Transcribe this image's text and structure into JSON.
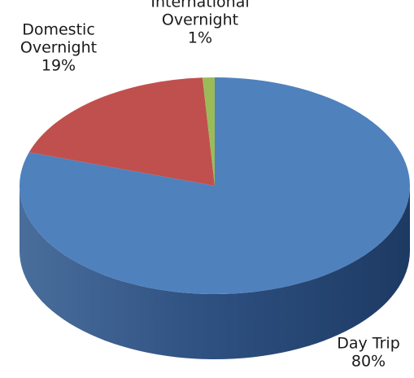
{
  "chart_data": {
    "type": "pie",
    "style": "3d",
    "title": "",
    "categories": [
      "Day Trip",
      "Domestic Overnight",
      "International Overnight"
    ],
    "values": [
      80,
      19,
      1
    ],
    "unit": "%",
    "colors": [
      "#4f81bd",
      "#c0504d",
      "#9bbb59"
    ],
    "side_colors": [
      "#2e5487",
      "#8b3431",
      "#6f8a3a"
    ],
    "labels": [
      {
        "name": [
          "Day Trip"
        ],
        "value": "80%"
      },
      {
        "name": [
          "Domestic",
          "Overnight"
        ],
        "value": "19%"
      },
      {
        "name": [
          "International",
          "Overnight"
        ],
        "value": "1%"
      }
    ],
    "legend": "none"
  }
}
